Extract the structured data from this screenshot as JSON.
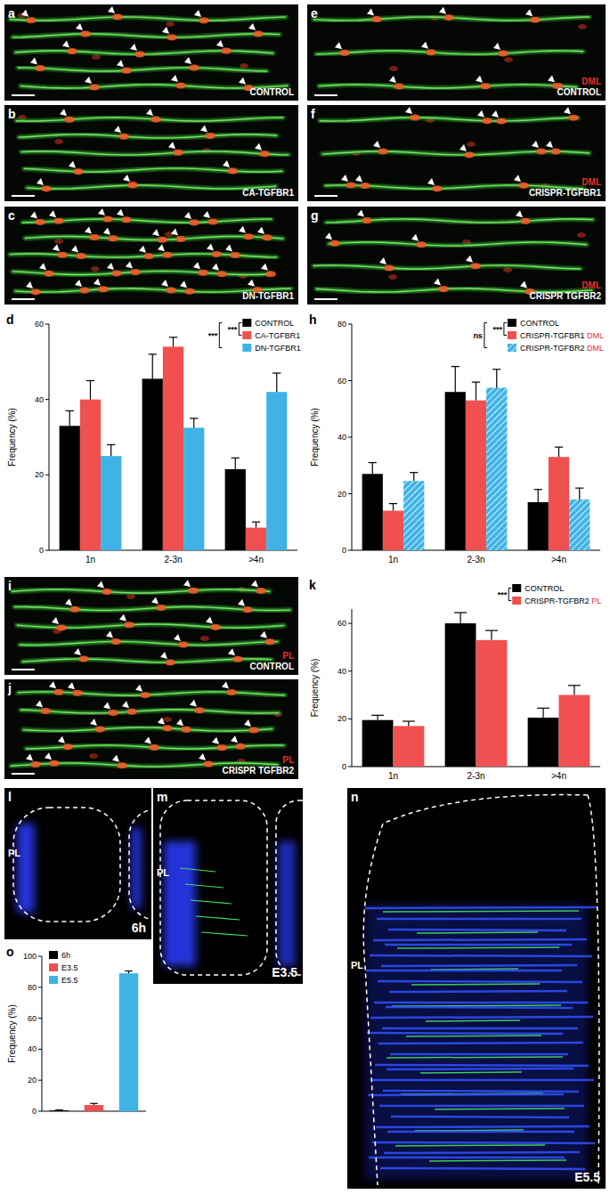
{
  "panels": [
    {
      "letter": "a",
      "condition": "CONTROL"
    },
    {
      "letter": "b",
      "condition": "CA-TGFBR1"
    },
    {
      "letter": "c",
      "condition": "DN-TGFBR1"
    },
    {
      "letter": "e",
      "tag": "DML",
      "condition": "CONTROL"
    },
    {
      "letter": "f",
      "tag": "DML",
      "condition": "CRISPR-TGFBR1"
    },
    {
      "letter": "g",
      "tag": "DML",
      "condition": "CRISPR TGFBR2"
    },
    {
      "letter": "i",
      "tag": "PL",
      "condition": "CONTROL"
    },
    {
      "letter": "j",
      "tag": "PL",
      "condition": "CRISPR TGFBR2"
    },
    {
      "letter": "l",
      "tag": "PL",
      "condition": "6h"
    },
    {
      "letter": "m",
      "tag": "PL",
      "condition": "E3.5"
    },
    {
      "letter": "n",
      "tag": "PL",
      "condition": "E5.5"
    }
  ],
  "chart_data": [
    {
      "type": "bar",
      "title": "d",
      "y_label": "Frequency (%)",
      "categories": [
        "1n",
        "2-3n",
        ">4n"
      ],
      "series": [
        {
          "name": "CONTROL",
          "color": "#000000",
          "values": [
            33,
            45.5,
            21.5
          ],
          "errors": [
            4,
            6.5,
            3
          ]
        },
        {
          "name": "CA-TGFBR1",
          "color": "#f0504f",
          "values": [
            40,
            54,
            6
          ],
          "errors": [
            5,
            2.5,
            1.5
          ]
        },
        {
          "name": "DN-TGFBR1",
          "color": "#3fb3e6",
          "values": [
            25,
            32.5,
            42
          ],
          "errors": [
            3,
            2.5,
            5
          ]
        }
      ],
      "ylim": [
        0,
        60
      ],
      "yticks": [
        0,
        20,
        40,
        60
      ],
      "legend": "upper right",
      "annotations": [
        "***",
        "***"
      ]
    },
    {
      "type": "bar",
      "title": "h",
      "y_label": "Frequency (%)",
      "categories": [
        "1n",
        "2-3n",
        ">4n"
      ],
      "series": [
        {
          "name": "CONTROL",
          "color": "#000000",
          "values": [
            27,
            56,
            17
          ],
          "errors": [
            4,
            9,
            4.5
          ]
        },
        {
          "name": "CRISPR-TGFBR1 DML",
          "color": "#f0504f",
          "values": [
            14,
            53,
            33
          ],
          "errors": [
            2.5,
            6.5,
            3.5
          ]
        },
        {
          "name": "CRISPR-TGFBR2 DML",
          "color": "#3fb3e6",
          "values": [
            24.5,
            57.5,
            18
          ],
          "errors": [
            3,
            6.5,
            4
          ]
        }
      ],
      "ylim": [
        0,
        80
      ],
      "yticks": [
        0,
        20,
        40,
        60,
        80
      ],
      "legend": "upper right",
      "annotations": [
        "***",
        "ns"
      ]
    },
    {
      "type": "bar",
      "title": "k",
      "y_label": "Frequency (%)",
      "categories": [
        "1n",
        "2-3n",
        ">4n"
      ],
      "series": [
        {
          "name": "CONTROL",
          "color": "#000000",
          "values": [
            19.5,
            60,
            20.5
          ],
          "errors": [
            2,
            4.5,
            4
          ]
        },
        {
          "name": "CRISPR-TGFBR2 PL",
          "color": "#f0504f",
          "values": [
            17,
            53,
            30
          ],
          "errors": [
            2,
            4,
            4
          ]
        }
      ],
      "ylim": [
        0,
        66
      ],
      "yticks": [
        0,
        20,
        40,
        60
      ],
      "legend": "upper right",
      "annotations": [
        "***"
      ]
    },
    {
      "type": "bar",
      "title": "o",
      "y_label": "Frequency (%)",
      "categories": [
        null
      ],
      "series": [
        {
          "name": "6h",
          "color": "#000000",
          "values": [
            0.5
          ],
          "errors": [
            0.3
          ]
        },
        {
          "name": "E3.5",
          "color": "#f0504f",
          "values": [
            4
          ],
          "errors": [
            1
          ]
        },
        {
          "name": "E5.5",
          "color": "#3fb3e6",
          "values": [
            89
          ],
          "errors": [
            1.5
          ]
        }
      ],
      "ylim": [
        0,
        100
      ],
      "yticks": [
        0,
        20,
        40,
        60,
        80,
        100
      ],
      "legend": "upper left",
      "tick_labels": "y"
    }
  ]
}
